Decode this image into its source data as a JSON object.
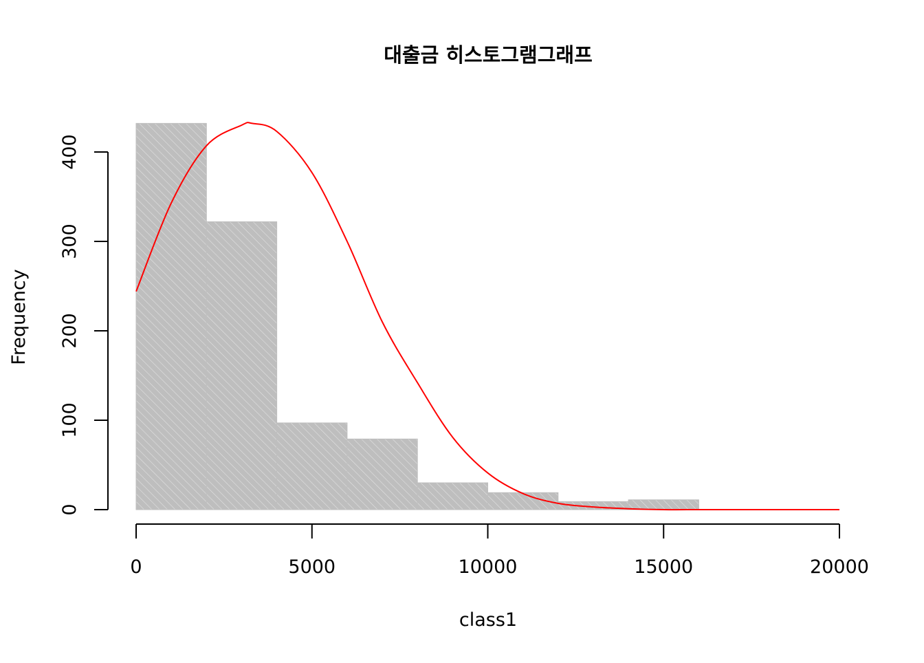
{
  "chart_data": {
    "type": "bar",
    "subtype": "histogram",
    "title": "대출금 히스토그램그래프",
    "xlabel": "class1",
    "ylabel": "Frequency",
    "bins": [
      {
        "start": 0,
        "end": 2000,
        "count": 432
      },
      {
        "start": 2000,
        "end": 4000,
        "count": 322
      },
      {
        "start": 4000,
        "end": 6000,
        "count": 97
      },
      {
        "start": 6000,
        "end": 8000,
        "count": 79
      },
      {
        "start": 8000,
        "end": 10000,
        "count": 30
      },
      {
        "start": 10000,
        "end": 12000,
        "count": 19
      },
      {
        "start": 12000,
        "end": 14000,
        "count": 9
      },
      {
        "start": 14000,
        "end": 16000,
        "count": 11
      }
    ],
    "xlim": [
      0,
      20000
    ],
    "ylim": [
      0,
      432
    ],
    "x_ticks": [
      0,
      5000,
      10000,
      15000,
      20000
    ],
    "x_tick_labels": [
      "0",
      "5000",
      "10000",
      "15000",
      "20000"
    ],
    "y_ticks": [
      0,
      100,
      200,
      300,
      400
    ],
    "y_tick_labels": [
      "0",
      "100",
      "200",
      "300",
      "400"
    ],
    "grid": false,
    "bar_color": "#bebebe",
    "bar_hatch_color": "#ffffff",
    "overlay_curve": {
      "type": "line",
      "color": "#ff0000",
      "x": [
        0,
        1000,
        2000,
        3000,
        3300,
        4000,
        5000,
        6000,
        7000,
        8000,
        9000,
        10000,
        11000,
        12000,
        13000,
        14000,
        15000,
        16000,
        17000,
        18000,
        19000,
        20000
      ],
      "y": [
        244,
        343,
        407,
        430,
        432,
        423,
        377,
        300,
        210,
        142,
        81,
        41,
        18,
        7,
        3,
        1,
        0,
        0,
        0,
        0,
        0,
        0
      ]
    }
  }
}
